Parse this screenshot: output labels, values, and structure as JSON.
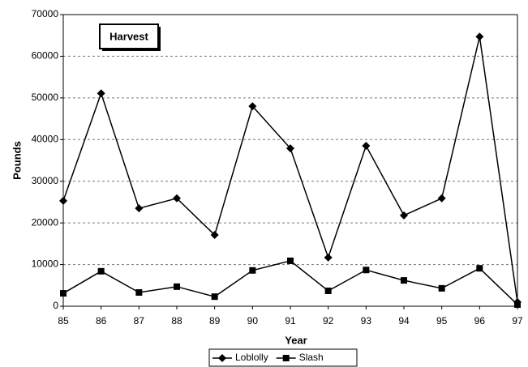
{
  "chart_data": {
    "type": "line",
    "title": "Harvest",
    "x_label": "Year",
    "y_label": "Pounds",
    "categories": [
      "85",
      "86",
      "87",
      "88",
      "89",
      "90",
      "91",
      "92",
      "93",
      "94",
      "95",
      "96",
      "97"
    ],
    "series": [
      {
        "name": "Loblolly",
        "color": "#000000",
        "marker": "diamond",
        "values": [
          25300,
          51100,
          23500,
          25900,
          17100,
          48000,
          37900,
          11700,
          38500,
          21800,
          25900,
          64700,
          1000
        ]
      },
      {
        "name": "Slash",
        "color": "#000000",
        "marker": "square",
        "values": [
          3100,
          8400,
          3300,
          4700,
          2300,
          8600,
          10900,
          3700,
          8700,
          6200,
          4300,
          9100,
          400
        ]
      }
    ],
    "ylim": [
      0,
      70000
    ],
    "yticks": [
      0,
      10000,
      20000,
      30000,
      40000,
      50000,
      60000,
      70000
    ],
    "grid": true,
    "legend": "bottom"
  }
}
